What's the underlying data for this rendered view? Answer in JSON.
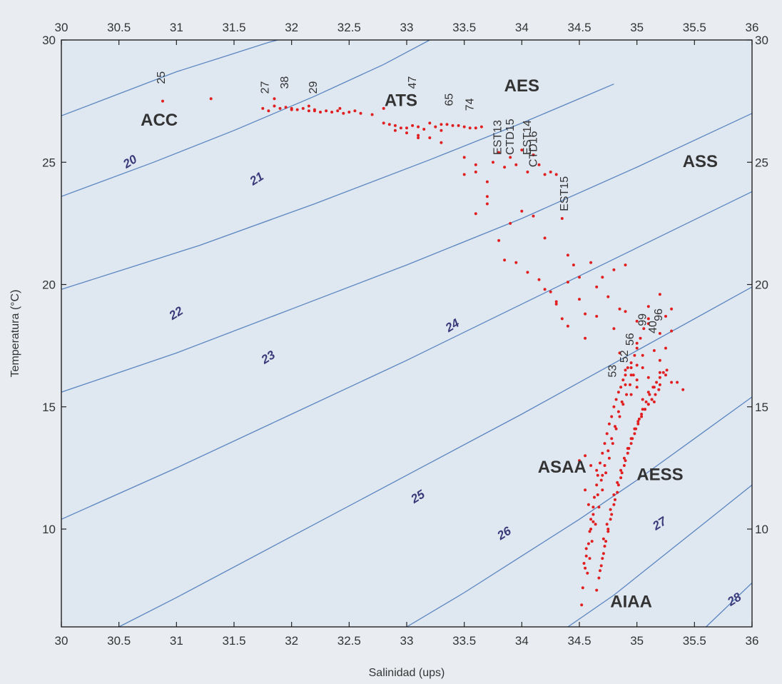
{
  "chart_data": {
    "type": "scatter",
    "title": "",
    "xlabel": "Salinidad (ups)",
    "ylabel": "Temperatura (°C)",
    "xlim": [
      30,
      36
    ],
    "ylim": [
      6,
      30
    ],
    "x_ticks": [
      "30",
      "30.5",
      "31",
      "31.5",
      "32",
      "32.5",
      "33",
      "33.5",
      "34",
      "34.5",
      "35",
      "35.5",
      "36"
    ],
    "y_ticks": [
      "10",
      "15",
      "20",
      "25",
      "30"
    ],
    "point_color": "#e02020",
    "isopycnal_color": "#5b86c0",
    "background": "#dfe7f1",
    "water_masses": [
      {
        "label": "ACC",
        "x": 30.85,
        "y": 26.5
      },
      {
        "label": "ATS",
        "x": 32.95,
        "y": 27.3
      },
      {
        "label": "AES",
        "x": 34.0,
        "y": 27.9
      },
      {
        "label": "ASS",
        "x": 35.55,
        "y": 24.8
      },
      {
        "label": "ASAA",
        "x": 34.35,
        "y": 12.3
      },
      {
        "label": "AESS",
        "x": 35.2,
        "y": 12.0
      },
      {
        "label": "AIAA",
        "x": 34.95,
        "y": 6.8
      }
    ],
    "station_labels": [
      {
        "label": "25",
        "x": 30.9,
        "y": 28.2
      },
      {
        "label": "27",
        "x": 31.8,
        "y": 27.8
      },
      {
        "label": "38",
        "x": 31.97,
        "y": 28.0
      },
      {
        "label": "29",
        "x": 32.22,
        "y": 27.8
      },
      {
        "label": "47",
        "x": 33.08,
        "y": 28.0
      },
      {
        "label": "65",
        "x": 33.4,
        "y": 27.3
      },
      {
        "label": "74",
        "x": 33.58,
        "y": 27.1
      },
      {
        "label": "EST13",
        "x": 33.82,
        "y": 25.3
      },
      {
        "label": "CTD15",
        "x": 33.93,
        "y": 25.3
      },
      {
        "label": "EST14",
        "x": 34.08,
        "y": 25.3
      },
      {
        "label": "CTD16",
        "x": 34.13,
        "y": 24.8
      },
      {
        "label": "EST15",
        "x": 34.4,
        "y": 23.0
      },
      {
        "label": "53",
        "x": 34.82,
        "y": 16.2
      },
      {
        "label": "52",
        "x": 34.92,
        "y": 16.8
      },
      {
        "label": "56",
        "x": 34.97,
        "y": 17.5
      },
      {
        "label": "99",
        "x": 35.08,
        "y": 18.3
      },
      {
        "label": "40",
        "x": 35.17,
        "y": 18.0
      },
      {
        "label": "96",
        "x": 35.22,
        "y": 18.5
      }
    ],
    "isopycnals": [
      {
        "sigma": "20",
        "x": [
          30.0,
          30.5,
          31.0,
          31.4,
          31.8,
          32.2,
          32.6
        ],
        "y": [
          26.9,
          27.8,
          28.7,
          29.3,
          29.9,
          30.4,
          31.0
        ],
        "label_at": [
          30.6,
          25.0
        ]
      },
      {
        "sigma": "21",
        "x": [
          30.0,
          30.8,
          31.5,
          32.2,
          32.8,
          33.2
        ],
        "y": [
          23.6,
          25.0,
          26.3,
          27.7,
          29.0,
          30.0
        ],
        "label_at": [
          31.7,
          24.3
        ]
      },
      {
        "sigma": "22",
        "x": [
          30.0,
          31.2,
          32.2,
          33.2,
          34.0,
          34.8
        ],
        "y": [
          19.8,
          21.6,
          23.3,
          25.1,
          26.6,
          28.2
        ],
        "label_at": [
          31.0,
          18.8
        ]
      },
      {
        "sigma": "23",
        "x": [
          30.0,
          31.0,
          32.0,
          33.0,
          34.0,
          35.0,
          36.0
        ],
        "y": [
          15.6,
          17.2,
          19.0,
          20.8,
          22.7,
          24.8,
          27.0
        ],
        "label_at": [
          31.8,
          17.0
        ]
      },
      {
        "sigma": "24",
        "x": [
          30.0,
          31.0,
          32.0,
          33.0,
          34.0,
          35.0,
          36.0
        ],
        "y": [
          10.4,
          12.5,
          14.7,
          16.9,
          19.2,
          21.5,
          23.8
        ],
        "label_at": [
          33.4,
          18.3
        ]
      },
      {
        "sigma": "25",
        "x": [
          30.5,
          31.0,
          32.0,
          33.0,
          34.0,
          35.0,
          36.0
        ],
        "y": [
          6.0,
          7.2,
          9.7,
          12.2,
          14.7,
          17.3,
          19.9
        ],
        "label_at": [
          33.1,
          11.3
        ]
      },
      {
        "sigma": "26",
        "x": [
          33.0,
          33.5,
          34.0,
          34.5,
          35.0,
          35.5,
          36.0
        ],
        "y": [
          6.0,
          7.4,
          8.9,
          10.4,
          12.0,
          13.7,
          15.4
        ],
        "label_at": [
          33.85,
          9.8
        ]
      },
      {
        "sigma": "27",
        "x": [
          34.4,
          34.8,
          35.2,
          35.6,
          36.0
        ],
        "y": [
          6.0,
          7.3,
          8.8,
          10.3,
          11.8
        ],
        "label_at": [
          35.2,
          10.2
        ]
      },
      {
        "sigma": "28",
        "x": [
          35.6,
          35.8,
          36.0
        ],
        "y": [
          6.0,
          6.9,
          7.8
        ],
        "label_at": [
          35.85,
          7.1
        ]
      }
    ],
    "series": [
      {
        "x": [
          30.88,
          31.3,
          31.85,
          31.75,
          31.8,
          31.85,
          31.9,
          31.95,
          32.0,
          32.05,
          32.1,
          32.15,
          32.2,
          32.25,
          32.3,
          32.35,
          32.4,
          32.45,
          32.5,
          32.2,
          32.15,
          32.0,
          32.42,
          32.55,
          32.6,
          32.7,
          32.8,
          32.8,
          32.9,
          33.0,
          33.1,
          33.2,
          33.3,
          33.4,
          33.5,
          33.6,
          33.65,
          33.0,
          33.1,
          33.2,
          33.3,
          32.85,
          32.95,
          33.05,
          33.15,
          33.25,
          33.35,
          33.45,
          33.55,
          32.9,
          33.1,
          33.3,
          33.5,
          33.6,
          33.7,
          33.75,
          33.8,
          33.85,
          33.9,
          33.95,
          34.0,
          34.05,
          34.1,
          34.15,
          34.2,
          34.25,
          34.3,
          33.5,
          33.6,
          33.7,
          33.8,
          33.9,
          34.0,
          34.1,
          34.2,
          33.6,
          33.7,
          33.85,
          33.95,
          34.05,
          34.15,
          34.25,
          34.35,
          34.4,
          34.45,
          34.5,
          34.3,
          34.35,
          34.4,
          34.5,
          34.55,
          34.6,
          34.65,
          34.7,
          34.75,
          34.8,
          34.85,
          34.9,
          34.2,
          34.3,
          34.4,
          34.55,
          34.65,
          34.8,
          34.9,
          35.0,
          35.1,
          35.2,
          35.3,
          35.1,
          35.2,
          35.25,
          35.3,
          35.0,
          34.95,
          35.05,
          35.15,
          35.2,
          35.25,
          35.35,
          34.85,
          34.9,
          34.95,
          35.0,
          35.05,
          35.1,
          35.15,
          35.2,
          34.9,
          34.95,
          35.0,
          35.05,
          35.1,
          35.15,
          35.2,
          35.25,
          35.3,
          35.4
        ],
        "y": [
          27.5,
          27.6,
          27.6,
          27.2,
          27.1,
          27.3,
          27.2,
          27.25,
          27.2,
          27.15,
          27.2,
          27.1,
          27.15,
          27.05,
          27.1,
          27.05,
          27.1,
          27.0,
          27.05,
          27.1,
          27.3,
          27.15,
          27.2,
          27.1,
          27.0,
          26.95,
          27.2,
          26.6,
          26.5,
          26.4,
          26.45,
          26.6,
          26.55,
          26.5,
          26.45,
          26.4,
          26.45,
          26.2,
          26.1,
          26.0,
          26.3,
          26.55,
          26.4,
          26.5,
          26.35,
          26.45,
          26.55,
          26.5,
          26.4,
          26.3,
          26.0,
          25.8,
          25.2,
          24.6,
          24.2,
          25.0,
          25.4,
          24.8,
          25.2,
          24.9,
          25.5,
          24.6,
          25.3,
          24.9,
          24.5,
          24.6,
          24.5,
          24.5,
          22.9,
          23.6,
          21.8,
          22.5,
          23.0,
          22.8,
          21.9,
          24.9,
          23.3,
          21.0,
          20.9,
          20.5,
          20.2,
          19.7,
          22.7,
          21.2,
          20.8,
          20.3,
          19.3,
          18.6,
          20.1,
          19.4,
          18.8,
          20.9,
          19.9,
          20.3,
          19.5,
          20.6,
          19.0,
          20.8,
          19.8,
          19.2,
          18.3,
          17.8,
          18.7,
          18.2,
          18.9,
          18.5,
          18.4,
          19.6,
          18.1,
          19.1,
          18.0,
          18.7,
          19.0,
          17.6,
          16.6,
          17.1,
          17.3,
          16.9,
          17.4,
          16.0,
          17.2,
          16.5,
          16.3,
          16.1,
          16.6,
          16.2,
          15.8,
          16.4,
          15.9,
          15.5,
          15.8,
          15.3,
          15.6,
          15.2,
          15.9,
          16.3,
          16.0,
          15.7
        ]
      },
      {
        "x": [
          34.52,
          34.53,
          34.55,
          34.56,
          34.58,
          34.59,
          34.6,
          34.62,
          34.63,
          34.65,
          34.66,
          34.68,
          34.7,
          34.72,
          34.74,
          34.76,
          34.78,
          34.8,
          34.82,
          34.84,
          34.86,
          34.88,
          34.9,
          34.92,
          34.95,
          34.98,
          35.0,
          35.03,
          35.06,
          35.1,
          34.57,
          34.59,
          34.61,
          34.64,
          34.67,
          34.7,
          34.73,
          34.76,
          34.79,
          34.82,
          34.85,
          34.88,
          34.91,
          34.94,
          34.97,
          35.0,
          34.54,
          34.56,
          34.6,
          34.62,
          34.66,
          34.69,
          34.72,
          34.75,
          34.78,
          34.81,
          34.84,
          34.87,
          34.5,
          34.55,
          34.6,
          34.65,
          34.7,
          34.55,
          34.58,
          34.62
        ],
        "y": [
          6.9,
          7.6,
          8.4,
          8.9,
          9.4,
          9.9,
          10.4,
          10.9,
          11.3,
          11.8,
          12.2,
          12.7,
          13.1,
          13.5,
          13.9,
          14.3,
          14.6,
          15.0,
          15.3,
          15.6,
          15.8,
          16.1,
          16.3,
          16.6,
          16.8,
          17.1,
          17.4,
          17.8,
          18.2,
          18.6,
          8.2,
          8.8,
          9.5,
          10.2,
          10.9,
          11.6,
          12.3,
          12.9,
          13.5,
          14.1,
          14.6,
          15.1,
          15.5,
          15.9,
          16.3,
          16.7,
          8.6,
          9.2,
          10.0,
          10.6,
          11.4,
          12.0,
          12.6,
          13.2,
          13.7,
          14.2,
          14.8,
          15.2,
          12.8,
          13.0,
          12.6,
          12.4,
          12.2,
          11.6,
          11.0,
          10.3
        ]
      },
      {
        "x": [
          34.65,
          34.67,
          34.69,
          34.71,
          34.73,
          34.75,
          34.78,
          34.81,
          34.84,
          34.87,
          34.9,
          34.93,
          34.96,
          34.99,
          35.02,
          35.05,
          35.08,
          35.11,
          35.14,
          35.17,
          35.2,
          35.23,
          35.26,
          34.68,
          34.7,
          34.72,
          34.75,
          34.77,
          34.8,
          34.83,
          34.86,
          34.89,
          34.92,
          34.95,
          34.98,
          35.01,
          35.04,
          35.07,
          35.1,
          35.13,
          35.16,
          35.19,
          34.71,
          34.74,
          34.77,
          34.8,
          34.83,
          34.86,
          34.89,
          34.92,
          34.95,
          34.98,
          35.01,
          35.04,
          35.07,
          35.1,
          35.13
        ],
        "y": [
          7.5,
          8.0,
          8.5,
          9.0,
          9.5,
          10.0,
          10.6,
          11.2,
          11.8,
          12.3,
          12.8,
          13.3,
          13.7,
          14.1,
          14.5,
          14.9,
          15.2,
          15.5,
          15.8,
          16.0,
          16.2,
          16.4,
          16.5,
          8.3,
          8.8,
          9.3,
          9.9,
          10.4,
          11.0,
          11.5,
          12.1,
          12.6,
          13.1,
          13.5,
          13.9,
          14.3,
          14.6,
          14.9,
          15.1,
          15.3,
          15.5,
          15.7,
          9.6,
          10.2,
          10.8,
          11.4,
          11.9,
          12.4,
          12.9,
          13.3,
          13.7,
          14.1,
          14.4,
          14.7,
          14.9,
          15.1,
          15.3
        ]
      }
    ]
  }
}
